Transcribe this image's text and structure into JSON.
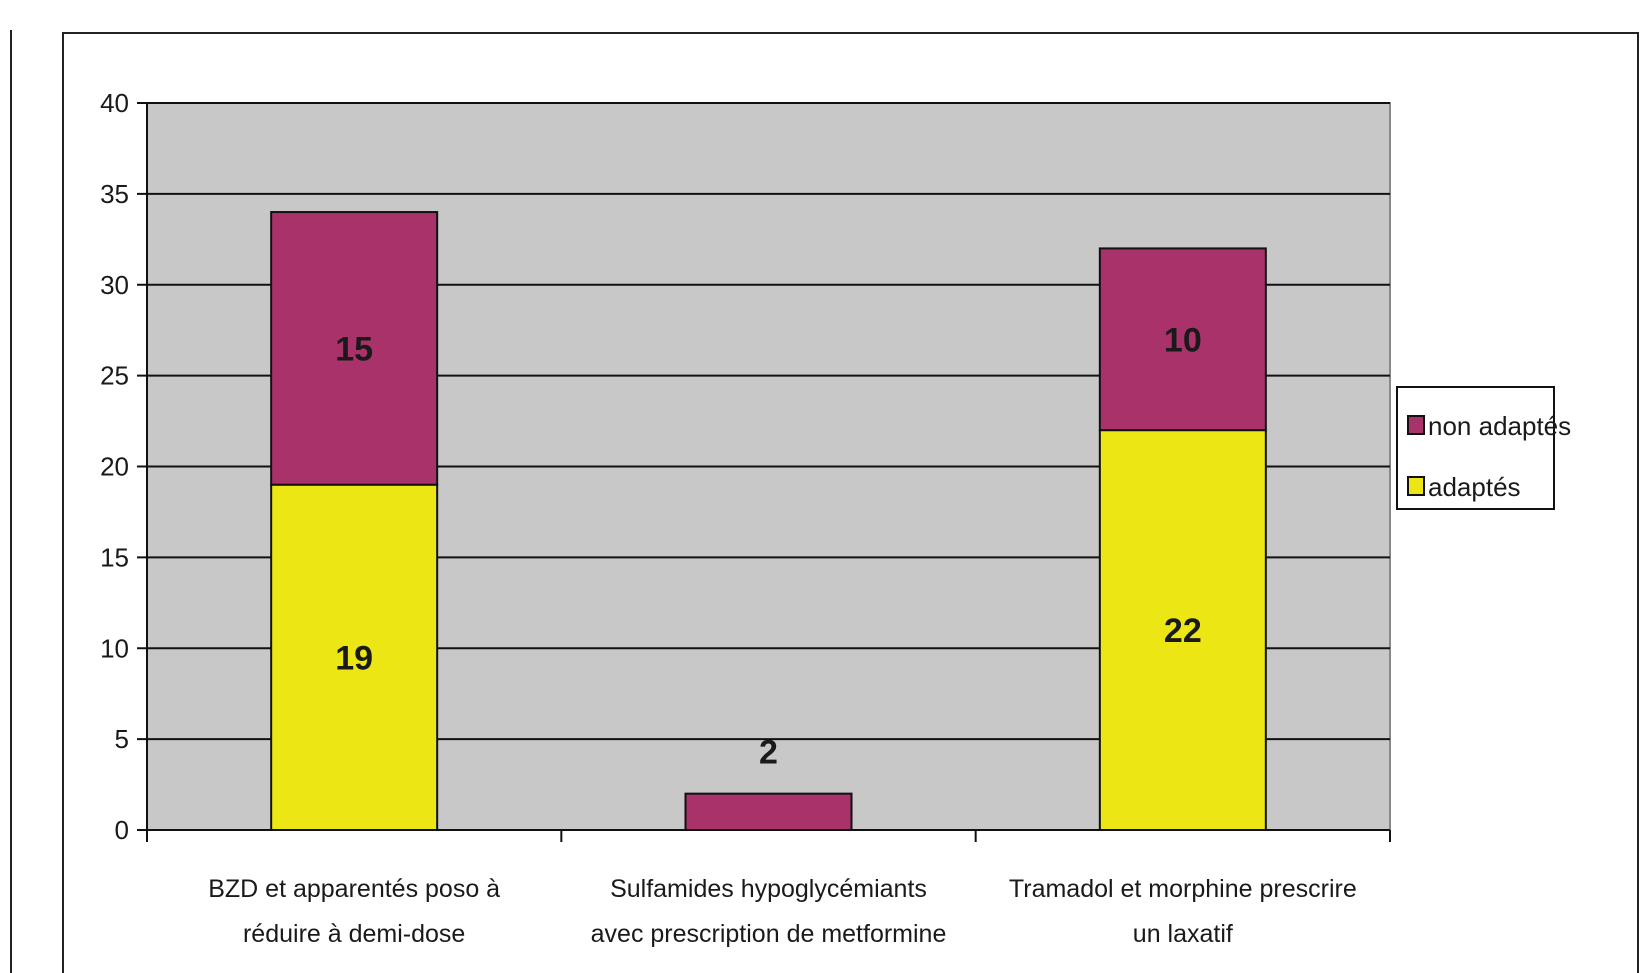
{
  "chart_data": {
    "type": "bar",
    "stacked": true,
    "categories": [
      [
        "BZD et apparentés poso à",
        "réduire à demi-dose"
      ],
      [
        "Sulfamides hypoglycémiants",
        "avec prescription de metformine"
      ],
      [
        "Tramadol et morphine prescrire",
        "un laxatif"
      ]
    ],
    "series": [
      {
        "name": "adaptés",
        "color": "#ebe614",
        "values": [
          19,
          0,
          22
        ]
      },
      {
        "name": "non adaptés",
        "color": "#a9326a",
        "values": [
          15,
          2,
          10
        ]
      }
    ],
    "data_labels": [
      {
        "category": 0,
        "series": "adaptés",
        "text": "19"
      },
      {
        "category": 0,
        "series": "non adaptés",
        "text": "15"
      },
      {
        "category": 1,
        "series": "non adaptés",
        "text": "2"
      },
      {
        "category": 2,
        "series": "adaptés",
        "text": "22"
      },
      {
        "category": 2,
        "series": "non adaptés",
        "text": "10"
      }
    ],
    "yticks": [
      "0",
      "5",
      "10",
      "15",
      "20",
      "25",
      "30",
      "35",
      "40"
    ],
    "ylim": [
      0,
      40
    ],
    "grid": true,
    "plot_background": "#c8c8c8",
    "legend_position": "right",
    "legend_order": [
      "non adaptés",
      "adaptés"
    ],
    "title": "",
    "xlabel": "",
    "ylabel": ""
  }
}
